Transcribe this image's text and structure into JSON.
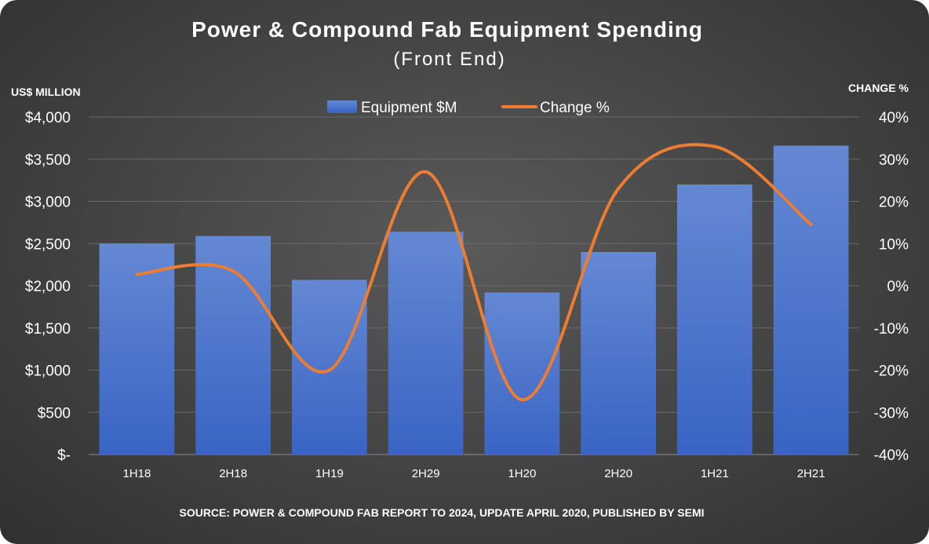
{
  "chart_data": {
    "type": "bar",
    "title": "Power & Compound Fab Equipment Spending",
    "subtitle": "(Front End)",
    "y_left_label": "US$ MILLION",
    "y_right_label": "CHANGE %",
    "categories": [
      "1H18",
      "2H18",
      "1H19",
      "2H29",
      "1H20",
      "2H20",
      "1H21",
      "2H21"
    ],
    "series": [
      {
        "name": "Equipment $M",
        "type": "bar",
        "axis": "left",
        "color": "#4472c4",
        "values": [
          2500,
          2590,
          2070,
          2640,
          1920,
          2400,
          3200,
          3660
        ]
      },
      {
        "name": "Change %",
        "type": "line",
        "axis": "right",
        "color": "#ed7d31",
        "values": [
          2.7,
          3.5,
          -20,
          27,
          -27,
          23,
          33,
          14.5
        ]
      }
    ],
    "y_left": {
      "min": 0,
      "max": 4000,
      "ticks": [
        "$-",
        "$500",
        "$1,000",
        "$1,500",
        "$2,000",
        "$2,500",
        "$3,000",
        "$3,500",
        "$4,000"
      ]
    },
    "y_right": {
      "min": -40,
      "max": 40,
      "ticks": [
        "-40%",
        "-30%",
        "-20%",
        "-10%",
        "0%",
        "10%",
        "20%",
        "30%",
        "40%"
      ]
    },
    "legend_position": "top",
    "grid": true,
    "source": "SOURCE: POWER & COMPOUND FAB REPORT TO 2024, UPDATE APRIL 2020, PUBLISHED BY SEMI"
  }
}
